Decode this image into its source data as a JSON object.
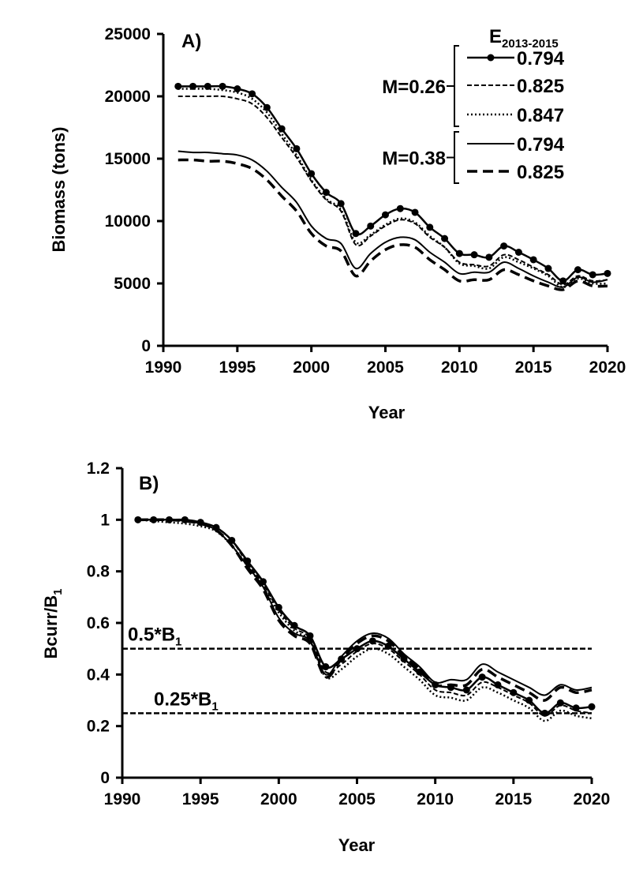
{
  "chart_data": [
    {
      "type": "line",
      "panel_label": "A)",
      "xlabel": "Year",
      "ylabel": "Biomass (tons)",
      "xlim": [
        1990,
        2020
      ],
      "ylim": [
        0,
        25000
      ],
      "xticks": [
        1990,
        1995,
        2000,
        2005,
        2010,
        2015,
        2020
      ],
      "yticks": [
        0,
        5000,
        10000,
        15000,
        20000,
        25000
      ],
      "grid": false,
      "legend": {
        "placement": "top-right",
        "title_main": "E",
        "title_sub": "2013-2015",
        "groups": [
          {
            "label": "M=0.26",
            "entries": [
              "0.794",
              "0.825",
              "0.847"
            ]
          },
          {
            "label": "M=0.38",
            "entries": [
              "0.794",
              "0.825"
            ]
          }
        ]
      },
      "x": [
        1991,
        1992,
        1993,
        1994,
        1995,
        1996,
        1997,
        1998,
        1999,
        2000,
        2001,
        2002,
        2003,
        2004,
        2005,
        2006,
        2007,
        2008,
        2009,
        2010,
        2011,
        2012,
        2013,
        2014,
        2015,
        2016,
        2017,
        2018,
        2019,
        2020
      ],
      "series": [
        {
          "name": "M=0.26 0.794",
          "style": "solid-markers",
          "values": [
            20800,
            20800,
            20800,
            20800,
            20600,
            20200,
            19100,
            17400,
            15800,
            13800,
            12300,
            11400,
            9000,
            9600,
            10500,
            11000,
            10700,
            9500,
            8600,
            7400,
            7300,
            7100,
            8000,
            7500,
            6900,
            6200,
            5200,
            6100,
            5700,
            5800
          ]
        },
        {
          "name": "M=0.26 0.825",
          "style": "short-dash",
          "values": [
            20000,
            20000,
            20000,
            20000,
            19800,
            19400,
            18300,
            16700,
            15100,
            13200,
            11700,
            10800,
            8100,
            8800,
            9600,
            10100,
            9800,
            8700,
            7900,
            6700,
            6500,
            6400,
            7300,
            6900,
            6300,
            5700,
            4900,
            5600,
            5200,
            5300
          ]
        },
        {
          "name": "M=0.26 0.847",
          "style": "dotted",
          "values": [
            20600,
            20600,
            20600,
            20500,
            20300,
            19800,
            18700,
            17000,
            15300,
            13300,
            11800,
            10900,
            8300,
            8900,
            9700,
            10200,
            9900,
            8800,
            7900,
            6600,
            6400,
            6200,
            7100,
            6700,
            6200,
            5600,
            4700,
            5400,
            5000,
            5000
          ]
        },
        {
          "name": "M=0.38 0.794",
          "style": "solid",
          "values": [
            15600,
            15500,
            15500,
            15400,
            15300,
            14900,
            14000,
            12700,
            11500,
            9600,
            8600,
            8200,
            6200,
            7400,
            8300,
            8700,
            8500,
            7500,
            6700,
            5800,
            5900,
            5900,
            6700,
            6200,
            5600,
            5100,
            4700,
            5500,
            5100,
            5300
          ]
        },
        {
          "name": "M=0.38 0.825",
          "style": "long-dash",
          "values": [
            14900,
            14900,
            14800,
            14800,
            14600,
            14200,
            13300,
            12000,
            10800,
            9000,
            8000,
            7600,
            5600,
            6800,
            7700,
            8100,
            7900,
            6900,
            6100,
            5200,
            5300,
            5300,
            6100,
            5700,
            5200,
            4800,
            4500,
            5200,
            4800,
            4800
          ]
        }
      ]
    },
    {
      "type": "line",
      "panel_label": "B)",
      "xlabel": "Year",
      "ylabel_main": "Bcurr/B",
      "ylabel_sub": "1",
      "xlim": [
        1990,
        2020
      ],
      "ylim": [
        0,
        1.2
      ],
      "xticks": [
        1990,
        1995,
        2000,
        2005,
        2010,
        2015,
        2020
      ],
      "yticks": [
        "0",
        "0.2",
        "0.4",
        "0.6",
        "0.8",
        "1",
        "1.2"
      ],
      "grid": false,
      "reference_lines": [
        {
          "y": 0.5,
          "label_main": "0.5*B",
          "label_sub": "1"
        },
        {
          "y": 0.25,
          "label_main": "0.25*B",
          "label_sub": "1"
        }
      ],
      "x": [
        1991,
        1992,
        1993,
        1994,
        1995,
        1996,
        1997,
        1998,
        1999,
        2000,
        2001,
        2002,
        2003,
        2004,
        2005,
        2006,
        2007,
        2008,
        2009,
        2010,
        2011,
        2012,
        2013,
        2014,
        2015,
        2016,
        2017,
        2018,
        2019,
        2020
      ],
      "series": [
        {
          "name": "M=0.26 0.794",
          "style": "solid-markers",
          "values": [
            1,
            1,
            1,
            1,
            0.99,
            0.97,
            0.92,
            0.84,
            0.76,
            0.66,
            0.59,
            0.55,
            0.43,
            0.46,
            0.5,
            0.53,
            0.51,
            0.46,
            0.41,
            0.36,
            0.35,
            0.34,
            0.39,
            0.36,
            0.33,
            0.3,
            0.25,
            0.29,
            0.27,
            0.275
          ]
        },
        {
          "name": "M=0.26 0.825",
          "style": "short-dash",
          "values": [
            1,
            1,
            1,
            1,
            0.99,
            0.97,
            0.92,
            0.83,
            0.75,
            0.65,
            0.58,
            0.54,
            0.41,
            0.44,
            0.49,
            0.52,
            0.5,
            0.45,
            0.4,
            0.34,
            0.33,
            0.32,
            0.37,
            0.35,
            0.32,
            0.29,
            0.24,
            0.28,
            0.26,
            0.25
          ]
        },
        {
          "name": "M=0.26 0.847",
          "style": "dotted",
          "values": [
            1,
            0.995,
            0.99,
            0.985,
            0.975,
            0.955,
            0.9,
            0.82,
            0.74,
            0.64,
            0.57,
            0.53,
            0.39,
            0.42,
            0.47,
            0.5,
            0.48,
            0.43,
            0.38,
            0.32,
            0.31,
            0.3,
            0.35,
            0.33,
            0.3,
            0.27,
            0.22,
            0.26,
            0.24,
            0.23
          ]
        },
        {
          "name": "M=0.38 0.794",
          "style": "solid",
          "values": [
            1,
            1,
            1,
            0.995,
            0.985,
            0.96,
            0.9,
            0.82,
            0.74,
            0.62,
            0.56,
            0.53,
            0.4,
            0.47,
            0.53,
            0.56,
            0.54,
            0.48,
            0.43,
            0.37,
            0.38,
            0.38,
            0.44,
            0.41,
            0.38,
            0.35,
            0.32,
            0.36,
            0.34,
            0.35
          ]
        },
        {
          "name": "M=0.38 0.825",
          "style": "long-dash",
          "values": [
            1,
            1,
            1,
            0.995,
            0.985,
            0.96,
            0.9,
            0.81,
            0.73,
            0.61,
            0.55,
            0.52,
            0.39,
            0.46,
            0.52,
            0.55,
            0.53,
            0.47,
            0.42,
            0.36,
            0.36,
            0.36,
            0.42,
            0.39,
            0.36,
            0.33,
            0.3,
            0.35,
            0.33,
            0.34
          ]
        }
      ]
    }
  ]
}
